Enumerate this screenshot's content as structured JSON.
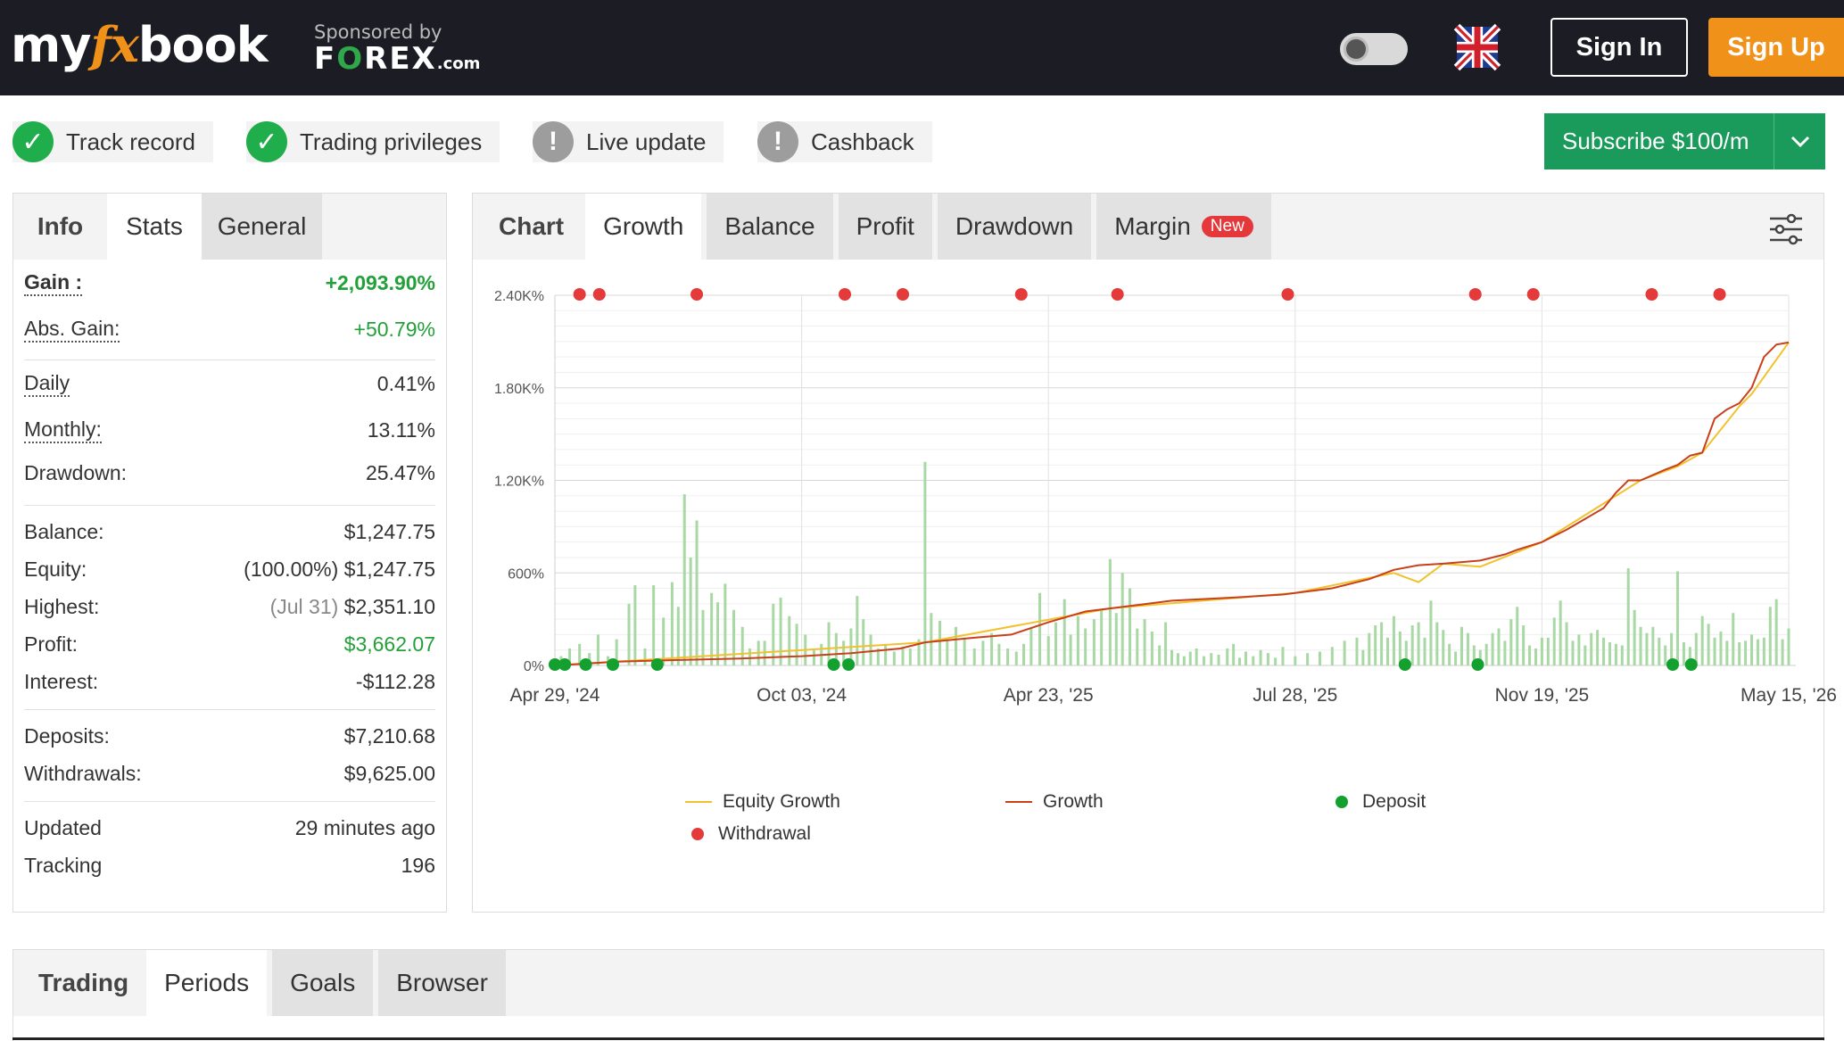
{
  "header": {
    "logo": {
      "part1": "my",
      "part2": "fx",
      "part3": "book"
    },
    "sponsor": {
      "by": "Sponsored by",
      "brand_a": "F",
      "brand_b": "O",
      "brand_c": "REX",
      "brand_d": ".com"
    },
    "sign_in": "Sign In",
    "sign_up": "Sign Up",
    "theme_toggle_icon": "sun-icon",
    "flag_icon": "uk-flag-icon"
  },
  "badges": [
    {
      "label": "Track record",
      "status": "ok"
    },
    {
      "label": "Trading privileges",
      "status": "ok"
    },
    {
      "label": "Live update",
      "status": "warn"
    },
    {
      "label": "Cashback",
      "status": "warn"
    }
  ],
  "subscribe": {
    "label": "Subscribe $100/m"
  },
  "info_panel": {
    "tabs": [
      "Info",
      "Stats",
      "General"
    ],
    "gain_label": "Gain :",
    "gain_value": "+2,093.90%",
    "abs_gain_label": "Abs. Gain:",
    "abs_gain_value": "+50.79%",
    "daily_label": "Daily",
    "daily_value": "0.41%",
    "monthly_label": "Monthly:",
    "monthly_value": "13.11%",
    "drawdown_label": "Drawdown:",
    "drawdown_value": "25.47%",
    "balance_label": "Balance:",
    "balance_value": "$1,247.75",
    "equity_label": "Equity:",
    "equity_pct": "(100.00%)",
    "equity_value": "$1,247.75",
    "highest_label": "Highest:",
    "highest_date": "(Jul 31)",
    "highest_value": "$2,351.10",
    "profit_label": "Profit:",
    "profit_value": "$3,662.07",
    "interest_label": "Interest:",
    "interest_value": "-$112.28",
    "deposits_label": "Deposits:",
    "deposits_value": "$7,210.68",
    "withdrawals_label": "Withdrawals:",
    "withdrawals_value": "$9,625.00",
    "updated_label": "Updated",
    "updated_value": "29 minutes ago",
    "tracking_label": "Tracking",
    "tracking_value": "196"
  },
  "chart_panel": {
    "tabs": [
      "Chart",
      "Growth",
      "Balance",
      "Profit",
      "Drawdown",
      "Margin"
    ],
    "new_badge": "New",
    "settings_icon": "sliders-icon"
  },
  "chart_data": {
    "type": "line",
    "x_ticks": [
      "Apr 29, '24",
      "Oct 03, '24",
      "Apr 23, '25",
      "Jul 28, '25",
      "Nov 19, '25",
      "May 15, '26"
    ],
    "y_ticks": [
      "0%",
      "600%",
      "1.20K%",
      "1.80K%",
      "2.40K%"
    ],
    "ylim": [
      0,
      2400
    ],
    "grid": true,
    "legend": [
      "Equity Growth",
      "Growth",
      "Deposit",
      "Withdrawal"
    ],
    "legend_placement": "bottom",
    "colors": {
      "equity_growth": "#f2c12e",
      "growth": "#c8401a",
      "deposit": "#13a02e",
      "withdrawal": "#e43a3a",
      "volume_bar": "#a8d8a3"
    },
    "series": [
      {
        "name": "Growth",
        "points": [
          [
            0,
            0
          ],
          [
            0.05,
            25
          ],
          [
            0.1,
            35
          ],
          [
            0.15,
            45
          ],
          [
            0.2,
            60
          ],
          [
            0.24,
            80
          ],
          [
            0.28,
            110
          ],
          [
            0.3,
            150
          ],
          [
            0.34,
            180
          ],
          [
            0.37,
            200
          ],
          [
            0.4,
            280
          ],
          [
            0.43,
            350
          ],
          [
            0.47,
            390
          ],
          [
            0.5,
            420
          ],
          [
            0.55,
            440
          ],
          [
            0.59,
            460
          ],
          [
            0.6,
            470
          ],
          [
            0.63,
            500
          ],
          [
            0.66,
            560
          ],
          [
            0.68,
            620
          ],
          [
            0.7,
            650
          ],
          [
            0.72,
            660
          ],
          [
            0.75,
            680
          ],
          [
            0.77,
            720
          ],
          [
            0.78,
            750
          ],
          [
            0.8,
            800
          ],
          [
            0.82,
            880
          ],
          [
            0.85,
            1020
          ],
          [
            0.86,
            1120
          ],
          [
            0.87,
            1200
          ],
          [
            0.88,
            1200
          ],
          [
            0.9,
            1270
          ],
          [
            0.91,
            1300
          ],
          [
            0.92,
            1360
          ],
          [
            0.93,
            1380
          ],
          [
            0.94,
            1600
          ],
          [
            0.95,
            1660
          ],
          [
            0.96,
            1700
          ],
          [
            0.97,
            1800
          ],
          [
            0.98,
            2000
          ],
          [
            0.99,
            2080
          ],
          [
            1.0,
            2094
          ]
        ]
      },
      {
        "name": "Equity Growth",
        "points": [
          [
            0,
            0
          ],
          [
            0.3,
            150
          ],
          [
            0.45,
            370
          ],
          [
            0.6,
            470
          ],
          [
            0.68,
            600
          ],
          [
            0.7,
            540
          ],
          [
            0.72,
            660
          ],
          [
            0.75,
            640
          ],
          [
            0.8,
            800
          ],
          [
            0.88,
            1200
          ],
          [
            0.91,
            1290
          ],
          [
            0.93,
            1380
          ],
          [
            0.96,
            1680
          ],
          [
            0.97,
            1760
          ],
          [
            1.0,
            2094
          ]
        ]
      }
    ],
    "deposits_x": [
      0.0,
      0.008,
      0.025,
      0.047,
      0.083,
      0.226,
      0.238,
      0.689,
      0.748,
      0.906,
      0.921
    ],
    "withdrawals_x": [
      0.02,
      0.036,
      0.115,
      0.235,
      0.282,
      0.378,
      0.456,
      0.594,
      0.746,
      0.793,
      0.889,
      0.944
    ],
    "volume_bars": [
      [
        0.005,
        60
      ],
      [
        0.012,
        110
      ],
      [
        0.02,
        140
      ],
      [
        0.028,
        80
      ],
      [
        0.035,
        200
      ],
      [
        0.043,
        60
      ],
      [
        0.05,
        170
      ],
      [
        0.06,
        400
      ],
      [
        0.065,
        520
      ],
      [
        0.073,
        110
      ],
      [
        0.08,
        520
      ],
      [
        0.088,
        310
      ],
      [
        0.095,
        540
      ],
      [
        0.1,
        380
      ],
      [
        0.105,
        1110
      ],
      [
        0.11,
        700
      ],
      [
        0.115,
        940
      ],
      [
        0.12,
        360
      ],
      [
        0.127,
        470
      ],
      [
        0.132,
        410
      ],
      [
        0.138,
        530
      ],
      [
        0.145,
        360
      ],
      [
        0.152,
        250
      ],
      [
        0.158,
        110
      ],
      [
        0.165,
        160
      ],
      [
        0.17,
        160
      ],
      [
        0.177,
        400
      ],
      [
        0.183,
        440
      ],
      [
        0.19,
        320
      ],
      [
        0.196,
        270
      ],
      [
        0.203,
        200
      ],
      [
        0.21,
        100
      ],
      [
        0.216,
        140
      ],
      [
        0.222,
        280
      ],
      [
        0.228,
        210
      ],
      [
        0.234,
        160
      ],
      [
        0.24,
        240
      ],
      [
        0.245,
        450
      ],
      [
        0.25,
        300
      ],
      [
        0.256,
        200
      ],
      [
        0.262,
        110
      ],
      [
        0.268,
        140
      ],
      [
        0.275,
        90
      ],
      [
        0.282,
        120
      ],
      [
        0.288,
        110
      ],
      [
        0.295,
        170
      ],
      [
        0.3,
        1320
      ],
      [
        0.305,
        340
      ],
      [
        0.312,
        290
      ],
      [
        0.318,
        170
      ],
      [
        0.325,
        250
      ],
      [
        0.332,
        180
      ],
      [
        0.34,
        110
      ],
      [
        0.347,
        160
      ],
      [
        0.354,
        210
      ],
      [
        0.36,
        140
      ],
      [
        0.367,
        110
      ],
      [
        0.374,
        90
      ],
      [
        0.38,
        140
      ],
      [
        0.386,
        240
      ],
      [
        0.393,
        470
      ],
      [
        0.4,
        190
      ],
      [
        0.406,
        280
      ],
      [
        0.413,
        430
      ],
      [
        0.418,
        200
      ],
      [
        0.424,
        320
      ],
      [
        0.43,
        240
      ],
      [
        0.437,
        300
      ],
      [
        0.443,
        360
      ],
      [
        0.45,
        690
      ],
      [
        0.455,
        340
      ],
      [
        0.46,
        600
      ],
      [
        0.466,
        500
      ],
      [
        0.472,
        240
      ],
      [
        0.478,
        300
      ],
      [
        0.484,
        220
      ],
      [
        0.49,
        130
      ],
      [
        0.495,
        280
      ],
      [
        0.5,
        100
      ],
      [
        0.505,
        80
      ],
      [
        0.51,
        60
      ],
      [
        0.515,
        90
      ],
      [
        0.52,
        110
      ],
      [
        0.526,
        60
      ],
      [
        0.532,
        80
      ],
      [
        0.538,
        70
      ],
      [
        0.545,
        110
      ],
      [
        0.55,
        140
      ],
      [
        0.555,
        50
      ],
      [
        0.56,
        90
      ],
      [
        0.566,
        60
      ],
      [
        0.572,
        100
      ],
      [
        0.578,
        80
      ],
      [
        0.584,
        50
      ],
      [
        0.59,
        120
      ],
      [
        0.6,
        60
      ],
      [
        0.61,
        80
      ],
      [
        0.62,
        90
      ],
      [
        0.63,
        120
      ],
      [
        0.64,
        160
      ],
      [
        0.65,
        180
      ],
      [
        0.655,
        100
      ],
      [
        0.66,
        210
      ],
      [
        0.665,
        260
      ],
      [
        0.67,
        280
      ],
      [
        0.675,
        180
      ],
      [
        0.68,
        320
      ],
      [
        0.685,
        220
      ],
      [
        0.69,
        160
      ],
      [
        0.695,
        260
      ],
      [
        0.7,
        280
      ],
      [
        0.705,
        180
      ],
      [
        0.71,
        420
      ],
      [
        0.715,
        280
      ],
      [
        0.72,
        230
      ],
      [
        0.725,
        140
      ],
      [
        0.73,
        90
      ],
      [
        0.735,
        250
      ],
      [
        0.74,
        210
      ],
      [
        0.745,
        130
      ],
      [
        0.75,
        100
      ],
      [
        0.755,
        140
      ],
      [
        0.76,
        210
      ],
      [
        0.765,
        240
      ],
      [
        0.77,
        160
      ],
      [
        0.775,
        300
      ],
      [
        0.78,
        380
      ],
      [
        0.785,
        260
      ],
      [
        0.79,
        130
      ],
      [
        0.795,
        110
      ],
      [
        0.8,
        180
      ],
      [
        0.805,
        180
      ],
      [
        0.81,
        310
      ],
      [
        0.815,
        420
      ],
      [
        0.82,
        280
      ],
      [
        0.825,
        160
      ],
      [
        0.83,
        200
      ],
      [
        0.835,
        130
      ],
      [
        0.84,
        210
      ],
      [
        0.845,
        230
      ],
      [
        0.85,
        180
      ],
      [
        0.855,
        150
      ],
      [
        0.86,
        140
      ],
      [
        0.865,
        130
      ],
      [
        0.87,
        630
      ],
      [
        0.875,
        360
      ],
      [
        0.88,
        250
      ],
      [
        0.885,
        210
      ],
      [
        0.89,
        250
      ],
      [
        0.895,
        180
      ],
      [
        0.9,
        130
      ],
      [
        0.905,
        210
      ],
      [
        0.91,
        610
      ],
      [
        0.915,
        150
      ],
      [
        0.92,
        120
      ],
      [
        0.925,
        210
      ],
      [
        0.93,
        320
      ],
      [
        0.935,
        270
      ],
      [
        0.94,
        180
      ],
      [
        0.945,
        220
      ],
      [
        0.95,
        160
      ],
      [
        0.955,
        340
      ],
      [
        0.96,
        150
      ],
      [
        0.965,
        160
      ],
      [
        0.97,
        200
      ],
      [
        0.975,
        170
      ],
      [
        0.98,
        180
      ],
      [
        0.985,
        380
      ],
      [
        0.99,
        430
      ],
      [
        0.995,
        170
      ],
      [
        1.0,
        240
      ]
    ]
  },
  "bottom_panel": {
    "tabs": [
      "Trading",
      "Periods",
      "Goals",
      "Browser"
    ]
  }
}
